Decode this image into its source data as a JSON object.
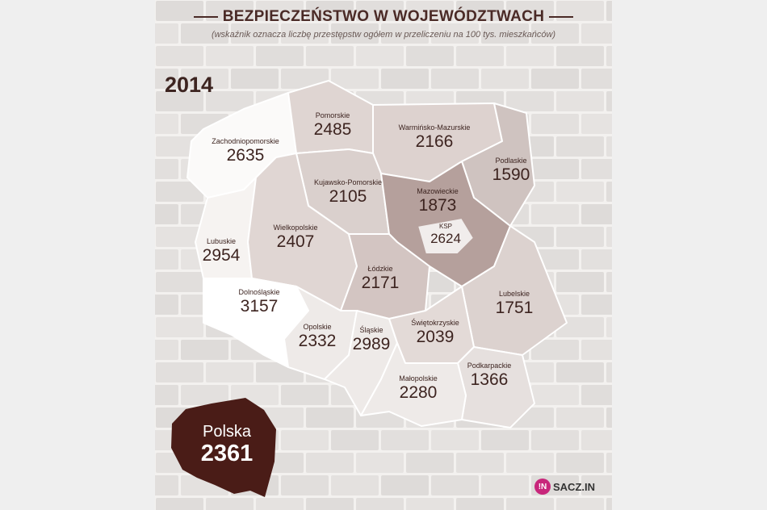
{
  "title": "BEZPIECZEŃSTWO W WOJEWÓDZTWACH",
  "subtitle": "(wskaźnik oznacza liczbę przestępstw ogółem w przeliczeniu na 100 tys. mieszkańców)",
  "year": "2014",
  "regions": [
    {
      "name": "Zachodniopomorskie",
      "value": "2635"
    },
    {
      "name": "Pomorskie",
      "value": "2485"
    },
    {
      "name": "Warmińsko-Mazurskie",
      "value": "2166"
    },
    {
      "name": "Podlaskie",
      "value": "1590"
    },
    {
      "name": "Kujawsko-Pomorskie",
      "value": "2105"
    },
    {
      "name": "Mazowieckie",
      "value": "1873"
    },
    {
      "name": "KSP",
      "value": "2624"
    },
    {
      "name": "Lubuskie",
      "value": "2954"
    },
    {
      "name": "Wielkopolskie",
      "value": "2407"
    },
    {
      "name": "Łódzkie",
      "value": "2171"
    },
    {
      "name": "Dolnośląskie",
      "value": "3157"
    },
    {
      "name": "Lubelskie",
      "value": "1751"
    },
    {
      "name": "Opolskie",
      "value": "2332"
    },
    {
      "name": "Śląskie",
      "value": "2989"
    },
    {
      "name": "Świętokrzyskie",
      "value": "2039"
    },
    {
      "name": "Podkarpackie",
      "value": "1366"
    },
    {
      "name": "Małopolskie",
      "value": "2280"
    }
  ],
  "country": {
    "name": "Polska",
    "value": "2361"
  },
  "logo": {
    "badge": "!N",
    "text": "SACZ.IN"
  },
  "colors": {
    "darkBrown": "#4a1c17",
    "text": "#3d2420",
    "brick": "#e4e1dd",
    "logo": "#c8267b"
  }
}
